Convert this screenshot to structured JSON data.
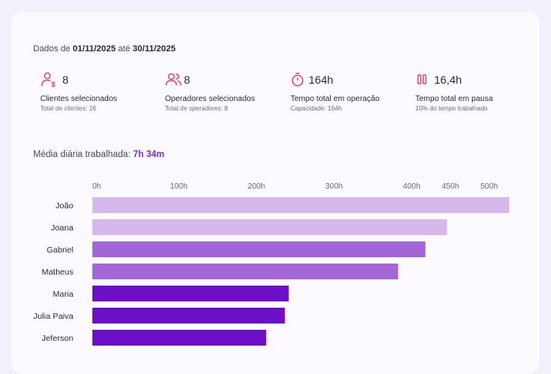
{
  "period": {
    "prefix": "Dados de",
    "start": "01/11/2025",
    "connector": "até",
    "end": "30/11/2025"
  },
  "stats": [
    {
      "icon": "client-money-icon",
      "value": "8",
      "title": "Clientes selecionados",
      "subtitle": "Total de clientes: 16"
    },
    {
      "icon": "users-icon",
      "value": "8",
      "title": "Operadores selecionados",
      "subtitle": "Total de operadores: 8"
    },
    {
      "icon": "stopwatch-icon",
      "value": "164h",
      "title": "Tempo total em operação",
      "subtitle": "Capacidade: 164h"
    },
    {
      "icon": "pause-icon",
      "value": "16,4h",
      "title": "Tempo total em pausa",
      "subtitle": "10% do tempo trabalhado"
    }
  ],
  "average": {
    "label": "Média diária trabalhada:",
    "value": "7h 34m"
  },
  "colors": {
    "accent": "#7b2fc4",
    "icon": "#e0407a",
    "bar_light": "#d6b8ec",
    "bar_mid": "#a366d6",
    "bar_dark": "#6e0fc8"
  },
  "chart_data": {
    "type": "bar",
    "orientation": "horizontal",
    "categories": [
      "João",
      "Joana",
      "Gabriel",
      "Matheus",
      "Maria",
      "Julia Paiva",
      "Jeferson"
    ],
    "values": [
      537,
      457,
      429,
      394,
      253,
      248,
      224
    ],
    "tone": [
      "light",
      "light",
      "mid",
      "mid",
      "dark",
      "dark",
      "dark"
    ],
    "xticks": [
      "0h",
      "100h",
      "200h",
      "300h",
      "400h",
      "450h",
      "500h"
    ],
    "xtick_values": [
      0,
      100,
      200,
      300,
      400,
      450,
      500
    ],
    "xlim": [
      0,
      537
    ],
    "title": "",
    "xlabel": "",
    "ylabel": ""
  }
}
